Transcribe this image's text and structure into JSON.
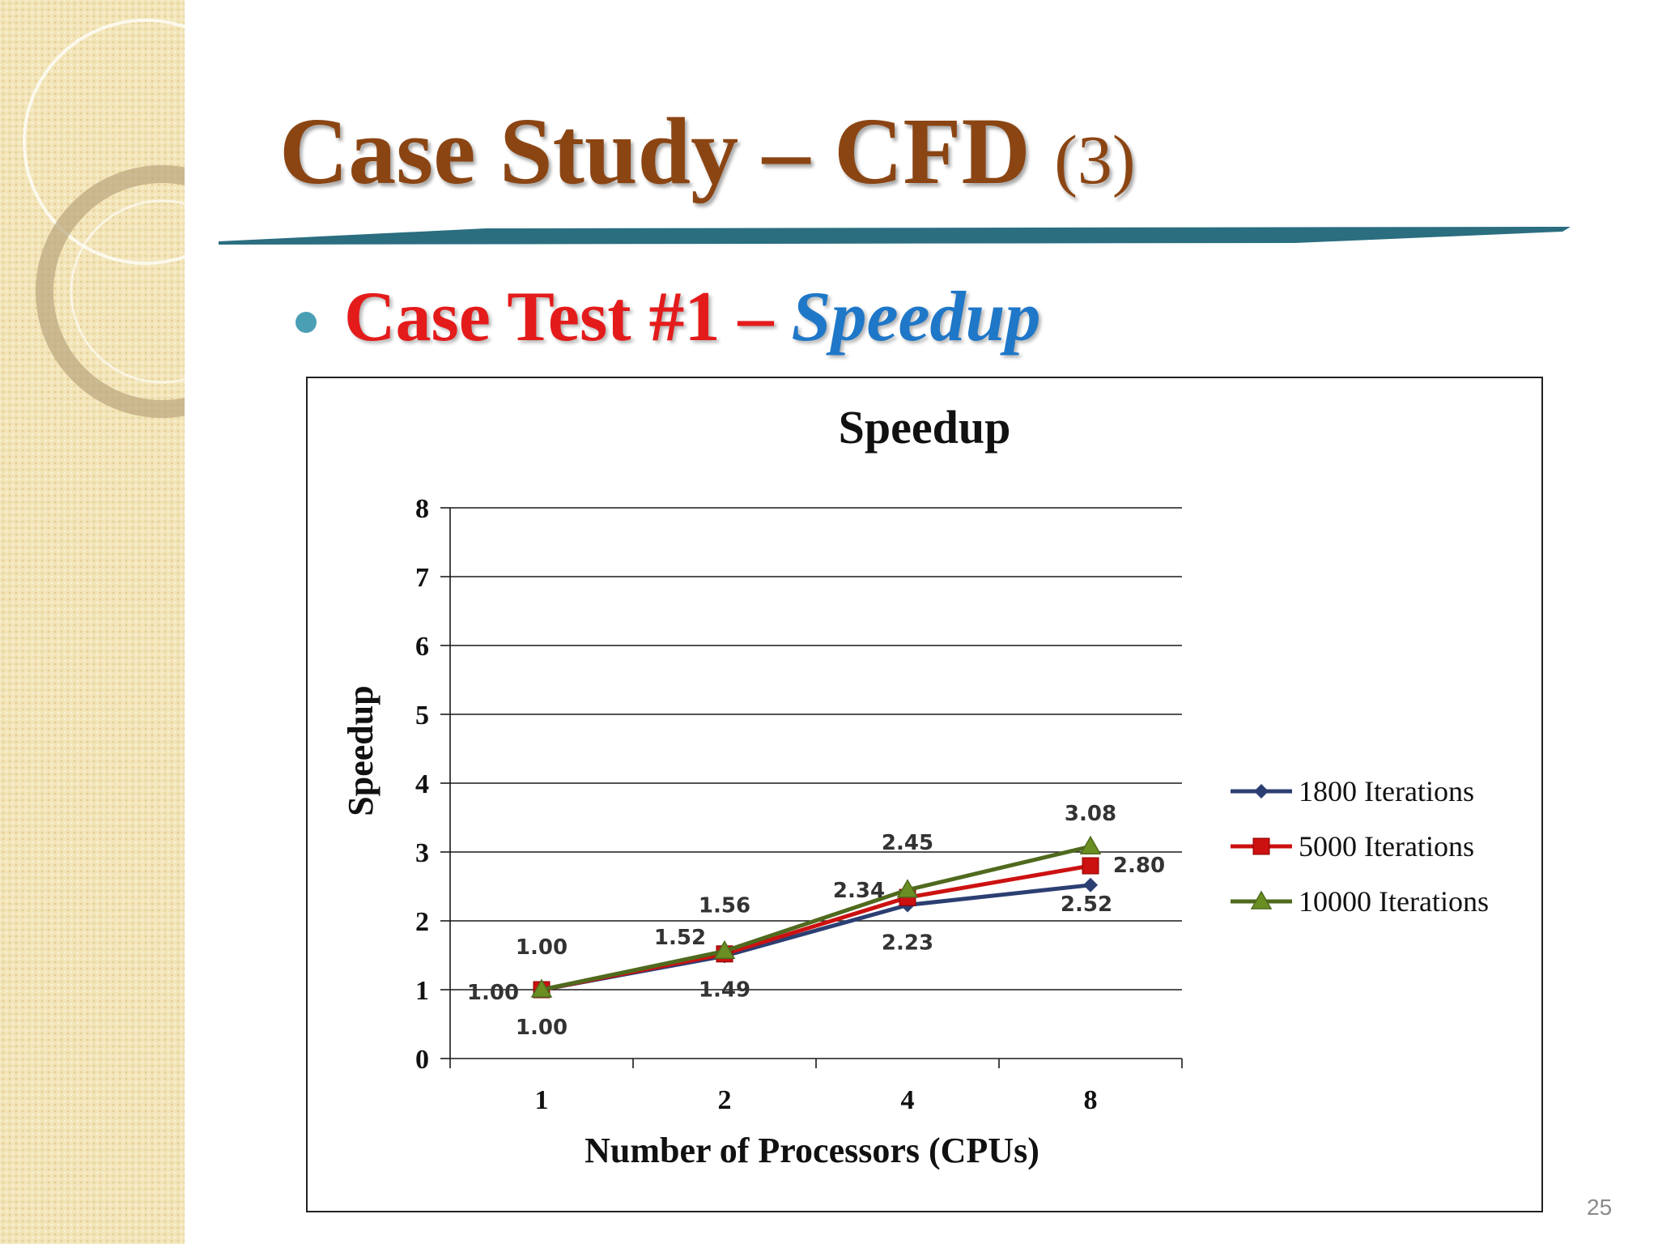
{
  "slide": {
    "title_main": "Case Study – CFD",
    "title_num": "(3)",
    "bullet_part1": "Case Test #1 –",
    "bullet_part2": "Speedup",
    "page_number": "25"
  },
  "colors": {
    "title": "#8b4513",
    "bullet_red": "#e41b1b",
    "bullet_blue": "#1f77c8",
    "rule": "#2a6e80",
    "series_1800": "#2c3f73",
    "series_5000": "#cc1111",
    "series_10000": "#4f6a1e"
  },
  "chart_data": {
    "type": "line",
    "title": "Speedup",
    "xlabel": "Number of Processors (CPUs)",
    "ylabel": "Speedup",
    "categories": [
      "1",
      "2",
      "4",
      "8"
    ],
    "ylim": [
      0,
      8
    ],
    "yticks": [
      0,
      1,
      2,
      3,
      4,
      5,
      6,
      7,
      8
    ],
    "grid": true,
    "legend_position": "right",
    "series": [
      {
        "name": "1800 Iterations",
        "marker": "diamond",
        "values": [
          1.0,
          1.49,
          2.23,
          2.52
        ]
      },
      {
        "name": "5000 Iterations",
        "marker": "square",
        "values": [
          1.0,
          1.52,
          2.34,
          2.8
        ]
      },
      {
        "name": "10000 Iterations",
        "marker": "triangle",
        "values": [
          1.0,
          1.56,
          2.45,
          3.08
        ]
      }
    ],
    "data_labels": [
      {
        "series": 0,
        "index": 0,
        "text": "1.00"
      },
      {
        "series": 0,
        "index": 1,
        "text": "1.49"
      },
      {
        "series": 0,
        "index": 2,
        "text": "2.23"
      },
      {
        "series": 0,
        "index": 3,
        "text": "2.52"
      },
      {
        "series": 1,
        "index": 0,
        "text": "1.00"
      },
      {
        "series": 1,
        "index": 1,
        "text": "1.52"
      },
      {
        "series": 1,
        "index": 2,
        "text": "2.34"
      },
      {
        "series": 1,
        "index": 3,
        "text": "2.80"
      },
      {
        "series": 2,
        "index": 0,
        "text": "1.00"
      },
      {
        "series": 2,
        "index": 1,
        "text": "1.56"
      },
      {
        "series": 2,
        "index": 2,
        "text": "2.45"
      },
      {
        "series": 2,
        "index": 3,
        "text": "3.08"
      }
    ]
  }
}
